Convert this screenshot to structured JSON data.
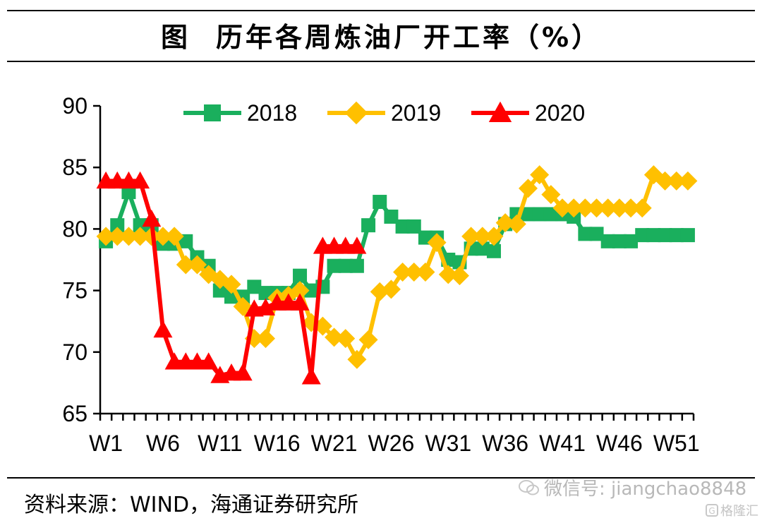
{
  "header": {
    "figure_prefix": "图",
    "title": "历年各周炼油厂开工率（%）"
  },
  "source": "资料来源：WIND，海通证券研究所",
  "watermark": {
    "text": "微信号: jiangchao8848",
    "logo_text": "格隆汇"
  },
  "chart_data": {
    "type": "line",
    "title": "历年各周炼油厂开工率（%）",
    "xlabel": "",
    "ylabel": "",
    "ylim": [
      65,
      90
    ],
    "yticks": [
      65,
      70,
      75,
      80,
      85,
      90
    ],
    "x_count": 52,
    "x_tick_labels": [
      "W1",
      "W6",
      "W11",
      "W16",
      "W21",
      "W26",
      "W31",
      "W36",
      "W41",
      "W46",
      "W51"
    ],
    "legend_position": "top",
    "series": [
      {
        "name": "2018",
        "color": "#1aaf5d",
        "marker": "square",
        "values": [
          79.0,
          80.3,
          83.0,
          80.3,
          80.3,
          78.8,
          78.8,
          79.0,
          77.7,
          77.0,
          75.0,
          74.5,
          74.5,
          75.3,
          74.8,
          74.8,
          74.8,
          76.2,
          75.0,
          75.3,
          77.0,
          77.0,
          77.0,
          80.3,
          82.2,
          81.0,
          80.2,
          80.2,
          79.3,
          79.3,
          77.5,
          77.3,
          78.4,
          78.4,
          78.2,
          80.4,
          81.2,
          81.2,
          81.2,
          81.2,
          81.2,
          81.0,
          79.6,
          79.6,
          79.0,
          79.0,
          79.0,
          79.5,
          79.5,
          79.5,
          79.5,
          79.5
        ]
      },
      {
        "name": "2019",
        "color": "#ffc000",
        "marker": "diamond",
        "values": [
          79.4,
          79.4,
          79.4,
          79.4,
          79.4,
          79.4,
          79.4,
          77.1,
          77.1,
          76.3,
          75.9,
          75.5,
          73.7,
          71.1,
          71.1,
          74.4,
          74.6,
          75.0,
          72.4,
          72.1,
          71.2,
          71.1,
          69.4,
          71.0,
          74.9,
          75.1,
          76.5,
          76.5,
          76.5,
          78.9,
          76.3,
          76.2,
          79.4,
          79.4,
          79.4,
          80.5,
          80.4,
          83.3,
          84.4,
          82.8,
          81.7,
          81.7,
          81.7,
          81.7,
          81.7,
          81.7,
          81.7,
          81.7,
          84.4,
          83.9,
          83.9,
          83.9
        ]
      },
      {
        "name": "2020",
        "color": "#ff0000",
        "marker": "triangle",
        "values": [
          83.9,
          83.9,
          83.9,
          83.9,
          80.8,
          71.8,
          69.2,
          69.2,
          69.2,
          69.2,
          68.1,
          68.3,
          68.3,
          73.5,
          73.6,
          74.0,
          74.0,
          74.0,
          68.0,
          78.6,
          78.6,
          78.6,
          78.6
        ]
      }
    ]
  }
}
